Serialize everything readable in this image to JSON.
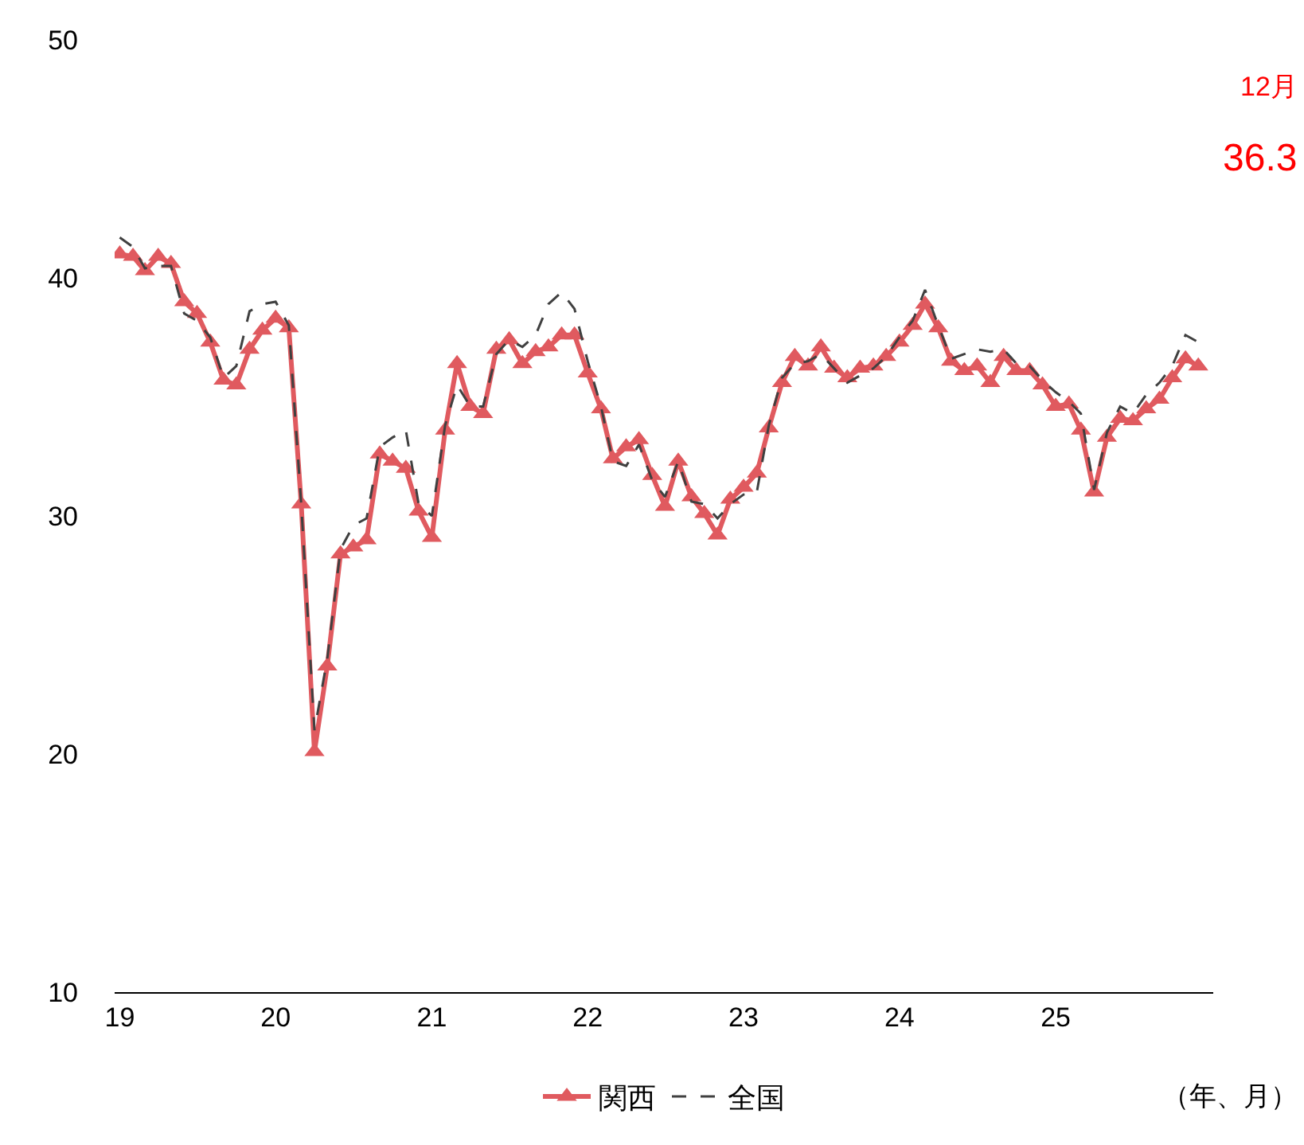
{
  "chart_data": {
    "type": "line",
    "x": [
      "2019-01",
      "2019-02",
      "2019-03",
      "2019-04",
      "2019-05",
      "2019-06",
      "2019-07",
      "2019-08",
      "2019-09",
      "2019-10",
      "2019-11",
      "2019-12",
      "2020-01",
      "2020-02",
      "2020-03",
      "2020-04",
      "2020-05",
      "2020-06",
      "2020-07",
      "2020-08",
      "2020-09",
      "2020-10",
      "2020-11",
      "2020-12",
      "2021-01",
      "2021-02",
      "2021-03",
      "2021-04",
      "2021-05",
      "2021-06",
      "2021-07",
      "2021-08",
      "2021-09",
      "2021-10",
      "2021-11",
      "2021-12",
      "2022-01",
      "2022-02",
      "2022-03",
      "2022-04",
      "2022-05",
      "2022-06",
      "2022-07",
      "2022-08",
      "2022-09",
      "2022-10",
      "2022-11",
      "2022-12",
      "2023-01",
      "2023-02",
      "2023-03",
      "2023-04",
      "2023-05",
      "2023-06",
      "2023-07",
      "2023-08",
      "2023-09",
      "2023-10",
      "2023-11",
      "2023-12",
      "2024-01",
      "2024-02",
      "2024-03",
      "2024-04",
      "2024-05",
      "2024-06",
      "2024-07",
      "2024-08",
      "2024-09",
      "2024-10",
      "2024-11",
      "2024-12",
      "2025-01",
      "2025-02",
      "2025-03",
      "2025-04",
      "2025-05",
      "2025-06",
      "2025-07",
      "2025-08",
      "2025-09",
      "2025-10",
      "2025-11",
      "2025-12"
    ],
    "series": [
      {
        "name": "関西",
        "color": "#e05a5f",
        "marker": "triangle",
        "line_style": "solid",
        "values": [
          41.0,
          40.9,
          40.3,
          40.9,
          40.6,
          39.0,
          38.5,
          37.3,
          35.7,
          35.5,
          37.0,
          37.8,
          38.3,
          37.9,
          30.5,
          20.1,
          23.7,
          28.4,
          28.7,
          29.0,
          32.6,
          32.3,
          32.0,
          30.2,
          29.1,
          33.6,
          36.4,
          34.6,
          34.3,
          37.0,
          37.4,
          36.4,
          36.9,
          37.1,
          37.6,
          37.6,
          36.0,
          34.5,
          32.4,
          32.9,
          33.2,
          31.7,
          30.4,
          32.3,
          30.8,
          30.1,
          29.2,
          30.7,
          31.2,
          31.8,
          33.7,
          35.6,
          36.7,
          36.3,
          37.1,
          36.2,
          35.8,
          36.2,
          36.3,
          36.7,
          37.3,
          38.0,
          38.9,
          37.9,
          36.5,
          36.1,
          36.3,
          35.6,
          36.7,
          36.1,
          36.1,
          35.5,
          34.6,
          34.7,
          33.6,
          31.0,
          33.3,
          34.1,
          34.0,
          34.5,
          34.9,
          35.8,
          36.6,
          36.3
        ]
      },
      {
        "name": "全国",
        "color": "#404040",
        "marker": "none",
        "line_style": "dashed",
        "values": [
          41.7,
          41.3,
          40.4,
          40.5,
          40.5,
          38.5,
          38.2,
          37.5,
          35.8,
          36.3,
          38.6,
          38.9,
          39.0,
          38.0,
          30.5,
          21.0,
          24.0,
          28.6,
          29.6,
          29.9,
          32.9,
          33.3,
          33.6,
          30.5,
          30.0,
          33.8,
          35.5,
          34.6,
          34.6,
          36.8,
          37.4,
          37.1,
          37.6,
          38.9,
          39.4,
          38.7,
          36.5,
          34.6,
          32.3,
          32.1,
          33.0,
          31.5,
          30.8,
          32.3,
          30.6,
          30.5,
          29.9,
          30.5,
          30.9,
          31.0,
          33.8,
          35.8,
          36.4,
          36.5,
          36.8,
          36.2,
          35.6,
          35.9,
          36.2,
          36.7,
          37.5,
          38.2,
          39.5,
          38.0,
          36.6,
          36.8,
          37.0,
          36.9,
          37.0,
          36.4,
          36.3,
          35.7,
          35.2,
          34.8,
          34.3,
          31.1,
          33.5,
          34.6,
          34.3,
          35.1,
          35.6,
          36.3,
          37.6,
          37.3
        ]
      }
    ],
    "xlim": [
      "2018-12-20",
      "2026-01-05"
    ],
    "xticks": [
      {
        "value": "2019-01",
        "label": "19"
      },
      {
        "value": "2020-01",
        "label": "20"
      },
      {
        "value": "2021-01",
        "label": "21"
      },
      {
        "value": "2022-01",
        "label": "22"
      },
      {
        "value": "2023-01",
        "label": "23"
      },
      {
        "value": "2024-01",
        "label": "24"
      },
      {
        "value": "2025-01",
        "label": "25"
      }
    ],
    "ylim": [
      10,
      50
    ],
    "yticks": [
      10,
      20,
      30,
      40,
      50
    ],
    "annotations": [
      "12月",
      "36.3",
      "（年、月）"
    ],
    "legend": "bottom"
  }
}
